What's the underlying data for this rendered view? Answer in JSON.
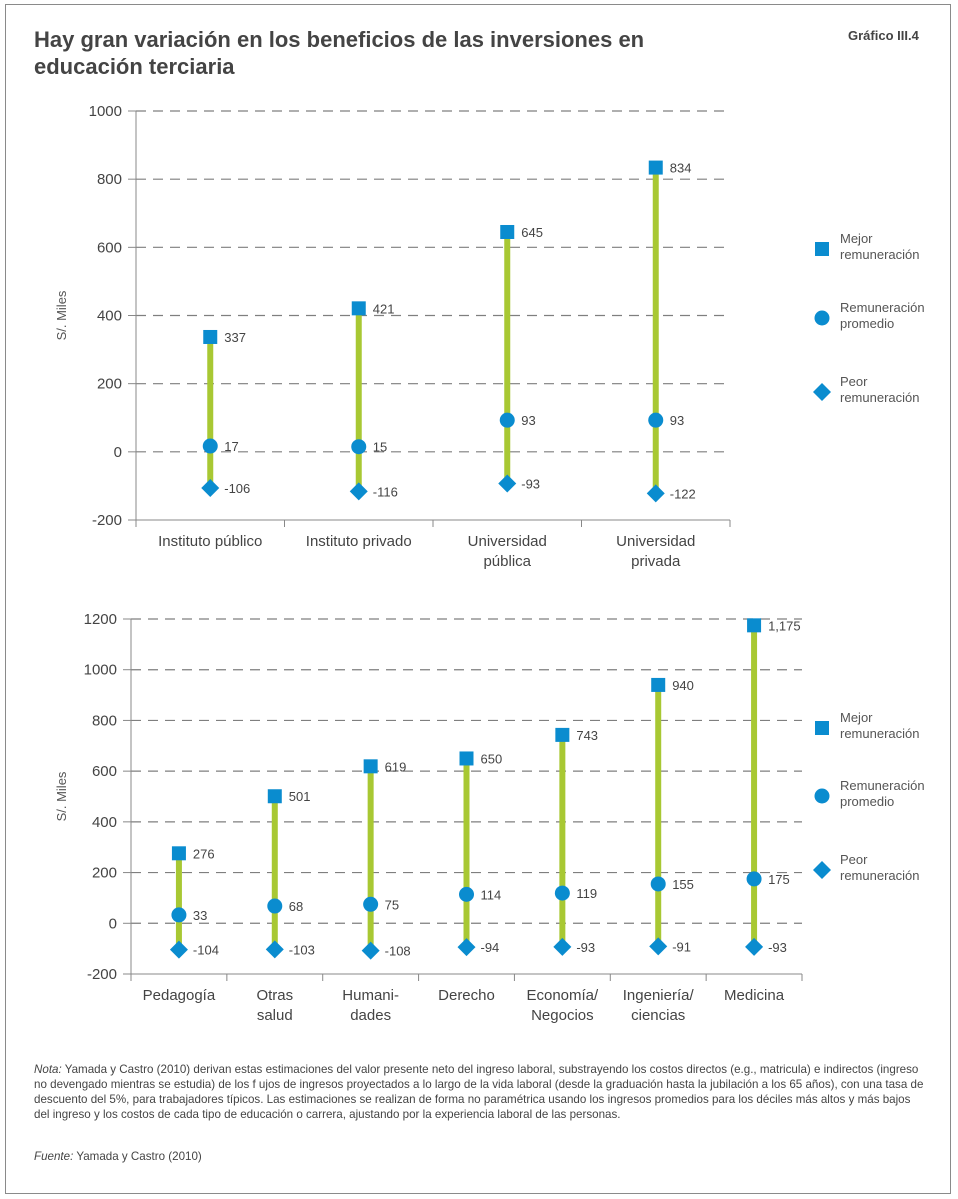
{
  "header": {
    "title": "Hay gran variación en los beneficios de las inversiones en educación terciaria",
    "code": "Gráfico III.4"
  },
  "colors": {
    "line": "#a8c833",
    "marker": "#0a8ccf",
    "grid": "#7f7f7f",
    "axis": "#888888"
  },
  "chart_data": [
    {
      "type": "range-dot",
      "ylabel": "S/. Miles",
      "ylim": [
        -200,
        1000
      ],
      "yticks": [
        1000,
        800,
        600,
        400,
        200,
        0,
        -200
      ],
      "grid": true,
      "legend_position": "right",
      "categories": [
        [
          "Instituto público"
        ],
        [
          "Instituto privado"
        ],
        [
          "Universidad",
          "pública"
        ],
        [
          "Universidad",
          "privada"
        ]
      ],
      "series": [
        {
          "name": "Mejor remuneración",
          "marker": "square",
          "values": [
            337,
            421,
            645,
            834
          ],
          "labels": [
            "337",
            "421",
            "645",
            "834"
          ]
        },
        {
          "name": "Remuneración promedio",
          "marker": "circle",
          "values": [
            17,
            15,
            93,
            93
          ],
          "labels": [
            "17",
            "15",
            "93",
            "93"
          ]
        },
        {
          "name": "Peor remuneración",
          "marker": "diamond",
          "values": [
            -106,
            -116,
            -93,
            -122
          ],
          "labels": [
            "-106",
            "-116",
            "-93",
            "-122"
          ]
        }
      ],
      "legend": [
        [
          "Mejor",
          "remuneración"
        ],
        [
          "Remuneración",
          "promedio"
        ],
        [
          "Peor",
          "remuneración"
        ]
      ]
    },
    {
      "type": "range-dot",
      "ylabel": "S/. Miles",
      "ylim": [
        -200,
        1200
      ],
      "yticks": [
        1200,
        1000,
        800,
        600,
        400,
        200,
        0,
        -200
      ],
      "grid": true,
      "legend_position": "right",
      "categories": [
        [
          "Pedagogía"
        ],
        [
          "Otras",
          "salud"
        ],
        [
          "Humani-",
          "dades"
        ],
        [
          "Derecho"
        ],
        [
          "Economía/",
          "Negocios"
        ],
        [
          "Ingeniería/",
          "ciencias"
        ],
        [
          "Medicina"
        ]
      ],
      "series": [
        {
          "name": "Mejor remuneración",
          "marker": "square",
          "values": [
            276,
            501,
            619,
            650,
            743,
            940,
            1175
          ],
          "labels": [
            "276",
            "501",
            "619",
            "650",
            "743",
            "940",
            "1,175"
          ]
        },
        {
          "name": "Remuneración promedio",
          "marker": "circle",
          "values": [
            33,
            68,
            75,
            114,
            119,
            155,
            175
          ],
          "labels": [
            "33",
            "68",
            "75",
            "114",
            "119",
            "155",
            "175"
          ]
        },
        {
          "name": "Peor remuneración",
          "marker": "diamond",
          "values": [
            -104,
            -103,
            -108,
            -94,
            -93,
            -91,
            -93
          ],
          "labels": [
            "-104",
            "-103",
            "-108",
            "-94",
            "-93",
            "-91",
            "-93"
          ]
        }
      ],
      "legend": [
        [
          "Mejor",
          "remuneración"
        ],
        [
          "Remuneración",
          "promedio"
        ],
        [
          "Peor",
          "remuneración"
        ]
      ]
    }
  ],
  "note": {
    "label": "Nota:",
    "text": " Yamada y Castro (2010) derivan estas estimaciones del valor presente neto del ingreso laboral, substrayendo los costos directos (e.g., matricula) e indirectos (ingreso no devengado mientras se estudia) de los f ujos de ingresos proyectados a lo largo de la vida laboral (desde la graduación hasta la jubilación a los 65 años), con una tasa de descuento del 5%, para trabajadores típicos. Las estimaciones se realizan de forma no paramétrica usando los ingresos promedios para los déciles más altos y más bajos del ingreso y los costos de cada tipo de educación o carrera, ajustando por la experiencia laboral de las personas."
  },
  "source": {
    "label": "Fuente:",
    "text": " Yamada y Castro (2010)"
  }
}
